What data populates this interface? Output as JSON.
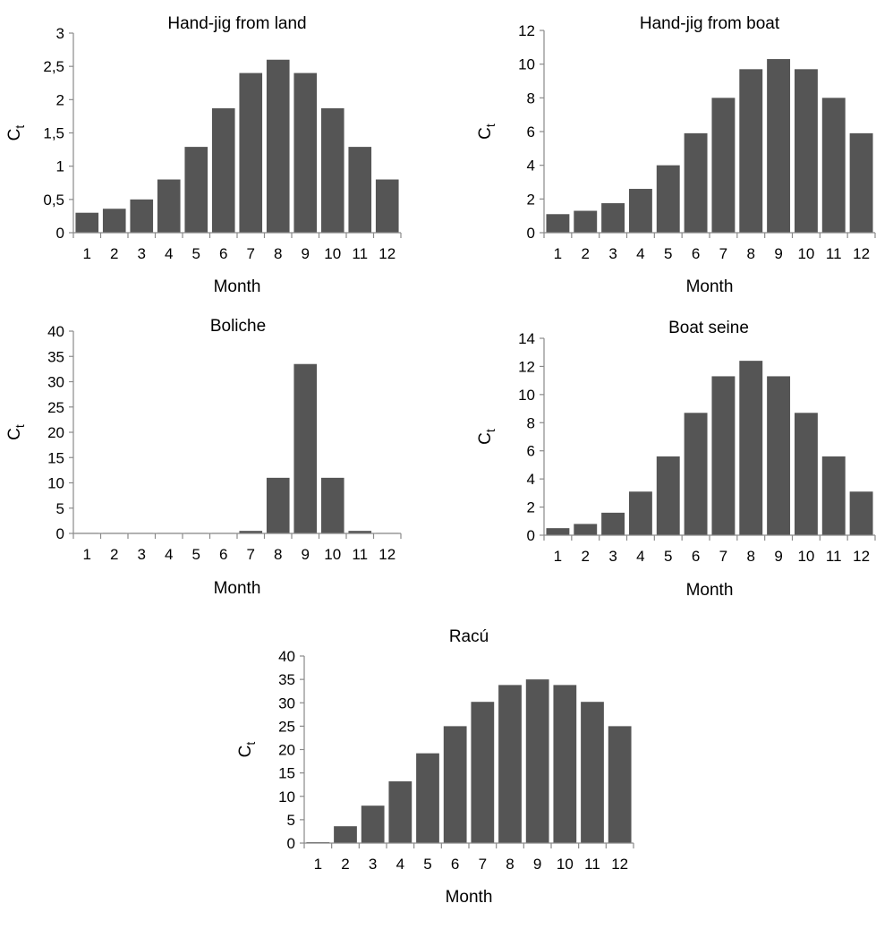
{
  "chart_data": [
    {
      "type": "bar",
      "title": "Hand-jig from land",
      "xlabel": "Month",
      "ylabel": "C",
      "ylabel_sub": "t",
      "categories": [
        "1",
        "2",
        "3",
        "4",
        "5",
        "6",
        "7",
        "8",
        "9",
        "10",
        "11",
        "12"
      ],
      "values": [
        0.3,
        0.36,
        0.5,
        0.8,
        1.29,
        1.87,
        2.4,
        2.6,
        2.4,
        1.87,
        1.29,
        0.8
      ],
      "ylim": [
        0,
        3
      ],
      "yticks": [
        "0",
        "0,5",
        "1",
        "1,5",
        "2",
        "2,5",
        "3"
      ],
      "bar_color": "#555555"
    },
    {
      "type": "bar",
      "title": "Hand-jig from boat",
      "xlabel": "Month",
      "ylabel": "C",
      "ylabel_sub": "t",
      "categories": [
        "1",
        "2",
        "3",
        "4",
        "5",
        "6",
        "7",
        "8",
        "9",
        "10",
        "11",
        "12"
      ],
      "values": [
        1.1,
        1.3,
        1.75,
        2.6,
        4.0,
        5.9,
        8.0,
        9.7,
        10.3,
        9.7,
        8.0,
        5.9
      ],
      "ylim": [
        0,
        12
      ],
      "yticks": [
        "0",
        "2",
        "4",
        "6",
        "8",
        "10",
        "12"
      ],
      "bar_color": "#555555"
    },
    {
      "type": "bar",
      "title": "Boliche",
      "xlabel": "Month",
      "ylabel": "C",
      "ylabel_sub": "t",
      "categories": [
        "1",
        "2",
        "3",
        "4",
        "5",
        "6",
        "7",
        "8",
        "9",
        "10",
        "11",
        "12"
      ],
      "values": [
        0.1,
        0.1,
        0.1,
        0.1,
        0.1,
        0.1,
        0.5,
        11,
        33.5,
        11,
        0.5,
        0.1
      ],
      "ylim": [
        0,
        40
      ],
      "yticks": [
        "0",
        "5",
        "10",
        "15",
        "20",
        "25",
        "30",
        "35",
        "40"
      ],
      "bar_color": "#555555"
    },
    {
      "type": "bar",
      "title": "Boat seine",
      "xlabel": "Month",
      "ylabel": "C",
      "ylabel_sub": "t",
      "categories": [
        "1",
        "2",
        "3",
        "4",
        "5",
        "6",
        "7",
        "8",
        "9",
        "10",
        "11",
        "12"
      ],
      "values": [
        0.5,
        0.8,
        1.6,
        3.1,
        5.6,
        8.7,
        11.3,
        12.4,
        11.3,
        8.7,
        5.6,
        3.1
      ],
      "ylim": [
        0,
        14
      ],
      "yticks": [
        "0",
        "2",
        "4",
        "6",
        "8",
        "10",
        "12",
        "14"
      ],
      "bar_color": "#555555"
    },
    {
      "type": "bar",
      "title": "Racú",
      "xlabel": "Month",
      "ylabel": "C",
      "ylabel_sub": "t",
      "categories": [
        "1",
        "2",
        "3",
        "4",
        "5",
        "6",
        "7",
        "8",
        "9",
        "10",
        "11",
        "12"
      ],
      "values": [
        0.2,
        3.6,
        8,
        13.2,
        19.2,
        25,
        30.2,
        33.8,
        35,
        33.8,
        30.2,
        25
      ],
      "ylim": [
        0,
        40
      ],
      "yticks": [
        "0",
        "5",
        "10",
        "15",
        "20",
        "25",
        "30",
        "35",
        "40"
      ],
      "bar_color": "#555555"
    }
  ]
}
